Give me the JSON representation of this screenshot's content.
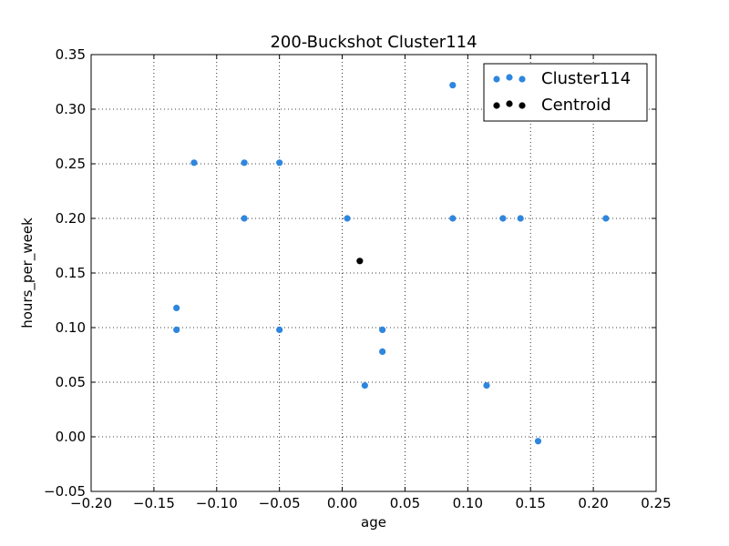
{
  "chart_data": {
    "type": "scatter",
    "title": "200-Buckshot Cluster114",
    "xlabel": "age",
    "ylabel": "hours_per_week",
    "xlim": [
      -0.2,
      0.25
    ],
    "ylim": [
      -0.05,
      0.35
    ],
    "xticks": [
      "−0.20",
      "−0.15",
      "−0.10",
      "−0.05",
      "0.00",
      "0.05",
      "0.10",
      "0.15",
      "0.20",
      "0.25"
    ],
    "yticks": [
      "−0.05",
      "0.00",
      "0.05",
      "0.10",
      "0.15",
      "0.20",
      "0.25",
      "0.30",
      "0.35"
    ],
    "grid": true,
    "legend_position": "top-right",
    "series": [
      {
        "name": "Cluster114",
        "color": "#2e86de",
        "points": [
          {
            "x": 0.088,
            "y": 0.322
          },
          {
            "x": -0.118,
            "y": 0.251
          },
          {
            "x": -0.078,
            "y": 0.251
          },
          {
            "x": -0.05,
            "y": 0.251
          },
          {
            "x": -0.078,
            "y": 0.2
          },
          {
            "x": 0.004,
            "y": 0.2
          },
          {
            "x": 0.088,
            "y": 0.2
          },
          {
            "x": 0.128,
            "y": 0.2
          },
          {
            "x": 0.142,
            "y": 0.2
          },
          {
            "x": 0.21,
            "y": 0.2
          },
          {
            "x": -0.132,
            "y": 0.118
          },
          {
            "x": -0.132,
            "y": 0.098
          },
          {
            "x": -0.05,
            "y": 0.098
          },
          {
            "x": 0.032,
            "y": 0.098
          },
          {
            "x": 0.032,
            "y": 0.078
          },
          {
            "x": 0.018,
            "y": 0.047
          },
          {
            "x": 0.115,
            "y": 0.047
          },
          {
            "x": 0.156,
            "y": -0.004
          }
        ]
      },
      {
        "name": "Centroid",
        "color": "#000000",
        "points": [
          {
            "x": 0.014,
            "y": 0.161
          }
        ]
      }
    ]
  }
}
